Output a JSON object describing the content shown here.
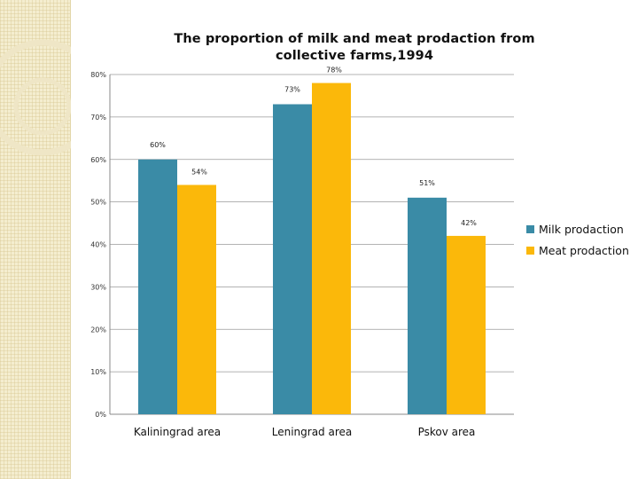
{
  "chart_data": {
    "type": "bar",
    "title": "The proportion of milk and meat prodaction from collective farms,1994",
    "categories": [
      "Kaliningrad area",
      "Leningrad area",
      "Pskov area"
    ],
    "series": [
      {
        "name": "Milk prodaction",
        "color": "#3a8ba6",
        "values": [
          60,
          73,
          51
        ],
        "labels": [
          "60%",
          "73%",
          "51%"
        ]
      },
      {
        "name": "Meat  prodaction",
        "color": "#fbb80a",
        "values": [
          54,
          78,
          42
        ],
        "labels": [
          "54%",
          "78%",
          "42%"
        ]
      }
    ],
    "ylim": [
      0,
      80
    ],
    "yticks": [
      0,
      10,
      20,
      30,
      40,
      50,
      60,
      70,
      80
    ],
    "ytick_labels": [
      "0%",
      "10%",
      "20%",
      "30%",
      "40%",
      "50%",
      "60%",
      "70%",
      "80%"
    ],
    "grid": true,
    "legend": "right"
  }
}
